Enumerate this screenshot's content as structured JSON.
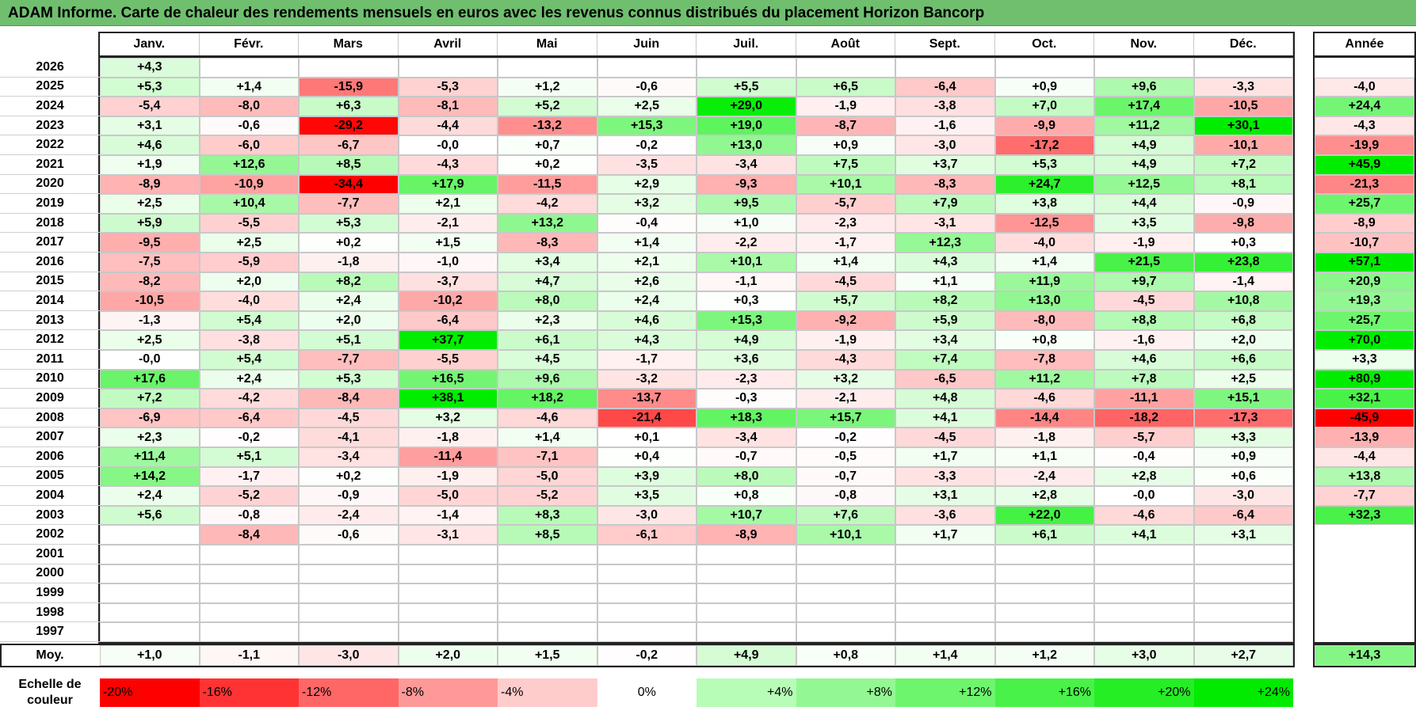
{
  "title": "ADAM Informe. Carte de chaleur des rendements mensuels en euros avec les revenus connus distribués du placement Horizon Bancorp",
  "chart_data": {
    "type": "heatmap",
    "title": "ADAM Informe. Carte de chaleur des rendements mensuels en euros avec les revenus connus distribués du placement Horizon Bancorp",
    "months": [
      "Janv.",
      "Févr.",
      "Mars",
      "Avril",
      "Mai",
      "Juin",
      "Juil.",
      "Août",
      "Sept.",
      "Oct.",
      "Nov.",
      "Déc."
    ],
    "year_header": "Année",
    "rows": [
      {
        "year": "2026",
        "values": [
          "+4,3",
          null,
          null,
          null,
          null,
          null,
          null,
          null,
          null,
          null,
          null,
          null
        ],
        "annual": null
      },
      {
        "year": "2025",
        "values": [
          "+5,3",
          "+1,4",
          "-15,9",
          "-5,3",
          "+1,2",
          "-0,6",
          "+5,5",
          "+6,5",
          "-6,4",
          "+0,9",
          "+9,6",
          "-3,3"
        ],
        "annual": "-4,0"
      },
      {
        "year": "2024",
        "values": [
          "-5,4",
          "-8,0",
          "+6,3",
          "-8,1",
          "+5,2",
          "+2,5",
          "+29,0",
          "-1,9",
          "-3,8",
          "+7,0",
          "+17,4",
          "-10,5"
        ],
        "annual": "+24,4"
      },
      {
        "year": "2023",
        "values": [
          "+3,1",
          "-0,6",
          "-29,2",
          "-4,4",
          "-13,2",
          "+15,3",
          "+19,0",
          "-8,7",
          "-1,6",
          "-9,9",
          "+11,2",
          "+30,1"
        ],
        "annual": "-4,3"
      },
      {
        "year": "2022",
        "values": [
          "+4,6",
          "-6,0",
          "-6,7",
          "-0,0",
          "+0,7",
          "-0,2",
          "+13,0",
          "+0,9",
          "-3,0",
          "-17,2",
          "+4,9",
          "-10,1"
        ],
        "annual": "-19,9"
      },
      {
        "year": "2021",
        "values": [
          "+1,9",
          "+12,6",
          "+8,5",
          "-4,3",
          "+0,2",
          "-3,5",
          "-3,4",
          "+7,5",
          "+3,7",
          "+5,3",
          "+4,9",
          "+7,2"
        ],
        "annual": "+45,9"
      },
      {
        "year": "2020",
        "values": [
          "-8,9",
          "-10,9",
          "-34,4",
          "+17,9",
          "-11,5",
          "+2,9",
          "-9,3",
          "+10,1",
          "-8,3",
          "+24,7",
          "+12,5",
          "+8,1"
        ],
        "annual": "-21,3"
      },
      {
        "year": "2019",
        "values": [
          "+2,5",
          "+10,4",
          "-7,7",
          "+2,1",
          "-4,2",
          "+3,2",
          "+9,5",
          "-5,7",
          "+7,9",
          "+3,8",
          "+4,4",
          "-0,9"
        ],
        "annual": "+25,7"
      },
      {
        "year": "2018",
        "values": [
          "+5,9",
          "-5,5",
          "+5,3",
          "-2,1",
          "+13,2",
          "-0,4",
          "+1,0",
          "-2,3",
          "-3,1",
          "-12,5",
          "+3,5",
          "-9,8"
        ],
        "annual": "-8,9"
      },
      {
        "year": "2017",
        "values": [
          "-9,5",
          "+2,5",
          "+0,2",
          "+1,5",
          "-8,3",
          "+1,4",
          "-2,2",
          "-1,7",
          "+12,3",
          "-4,0",
          "-1,9",
          "+0,3"
        ],
        "annual": "-10,7"
      },
      {
        "year": "2016",
        "values": [
          "-7,5",
          "-5,9",
          "-1,8",
          "-1,0",
          "+3,4",
          "+2,1",
          "+10,1",
          "+1,4",
          "+4,3",
          "+1,4",
          "+21,5",
          "+23,8"
        ],
        "annual": "+57,1"
      },
      {
        "year": "2015",
        "values": [
          "-8,2",
          "+2,0",
          "+8,2",
          "-3,7",
          "+4,7",
          "+2,6",
          "-1,1",
          "-4,5",
          "+1,1",
          "+11,9",
          "+9,7",
          "-1,4"
        ],
        "annual": "+20,9"
      },
      {
        "year": "2014",
        "values": [
          "-10,5",
          "-4,0",
          "+2,4",
          "-10,2",
          "+8,0",
          "+2,4",
          "+0,3",
          "+5,7",
          "+8,2",
          "+13,0",
          "-4,5",
          "+10,8"
        ],
        "annual": "+19,3"
      },
      {
        "year": "2013",
        "values": [
          "-1,3",
          "+5,4",
          "+2,0",
          "-6,4",
          "+2,3",
          "+4,6",
          "+15,3",
          "-9,2",
          "+5,9",
          "-8,0",
          "+8,8",
          "+6,8"
        ],
        "annual": "+25,7"
      },
      {
        "year": "2012",
        "values": [
          "+2,5",
          "-3,8",
          "+5,1",
          "+37,7",
          "+6,1",
          "+4,3",
          "+4,9",
          "-1,9",
          "+3,4",
          "+0,8",
          "-1,6",
          "+2,0"
        ],
        "annual": "+70,0"
      },
      {
        "year": "2011",
        "values": [
          "-0,0",
          "+5,4",
          "-7,7",
          "-5,5",
          "+4,5",
          "-1,7",
          "+3,6",
          "-4,3",
          "+7,4",
          "-7,8",
          "+4,6",
          "+6,6"
        ],
        "annual": "+3,3"
      },
      {
        "year": "2010",
        "values": [
          "+17,6",
          "+2,4",
          "+5,3",
          "+16,5",
          "+9,6",
          "-3,2",
          "-2,3",
          "+3,2",
          "-6,5",
          "+11,2",
          "+7,8",
          "+2,5"
        ],
        "annual": "+80,9"
      },
      {
        "year": "2009",
        "values": [
          "+7,2",
          "-4,2",
          "-8,4",
          "+38,1",
          "+18,2",
          "-13,7",
          "-0,3",
          "-2,1",
          "+4,8",
          "-4,6",
          "-11,1",
          "+15,1"
        ],
        "annual": "+32,1"
      },
      {
        "year": "2008",
        "values": [
          "-6,9",
          "-6,4",
          "-4,5",
          "+3,2",
          "-4,6",
          "-21,4",
          "+18,3",
          "+15,7",
          "+4,1",
          "-14,4",
          "-18,2",
          "-17,3"
        ],
        "annual": "-45,9"
      },
      {
        "year": "2007",
        "values": [
          "+2,3",
          "-0,2",
          "-4,1",
          "-1,8",
          "+1,4",
          "+0,1",
          "-3,4",
          "-0,2",
          "-4,5",
          "-1,8",
          "-5,7",
          "+3,3"
        ],
        "annual": "-13,9"
      },
      {
        "year": "2006",
        "values": [
          "+11,4",
          "+5,1",
          "-3,4",
          "-11,4",
          "-7,1",
          "+0,4",
          "-0,7",
          "-0,5",
          "+1,7",
          "+1,1",
          "-0,4",
          "+0,9"
        ],
        "annual": "-4,4"
      },
      {
        "year": "2005",
        "values": [
          "+14,2",
          "-1,7",
          "+0,2",
          "-1,9",
          "-5,0",
          "+3,9",
          "+8,0",
          "-0,7",
          "-3,3",
          "-2,4",
          "+2,8",
          "+0,6"
        ],
        "annual": "+13,8"
      },
      {
        "year": "2004",
        "values": [
          "+2,4",
          "-5,2",
          "-0,9",
          "-5,0",
          "-5,2",
          "+3,5",
          "+0,8",
          "-0,8",
          "+3,1",
          "+2,8",
          "-0,0",
          "-3,0"
        ],
        "annual": "-7,7"
      },
      {
        "year": "2003",
        "values": [
          "+5,6",
          "-0,8",
          "-2,4",
          "-1,4",
          "+8,3",
          "-3,0",
          "+10,7",
          "+7,6",
          "-3,6",
          "+22,0",
          "-4,6",
          "-6,4"
        ],
        "annual": "+32,3"
      },
      {
        "year": "2002",
        "values": [
          null,
          "-8,4",
          "-0,6",
          "-3,1",
          "+8,5",
          "-6,1",
          "-8,9",
          "+10,1",
          "+1,7",
          "+6,1",
          "+4,1",
          "+3,1"
        ],
        "annual": null
      },
      {
        "year": "2001",
        "values": [
          null,
          null,
          null,
          null,
          null,
          null,
          null,
          null,
          null,
          null,
          null,
          null
        ],
        "annual": null
      },
      {
        "year": "2000",
        "values": [
          null,
          null,
          null,
          null,
          null,
          null,
          null,
          null,
          null,
          null,
          null,
          null
        ],
        "annual": null
      },
      {
        "year": "1999",
        "values": [
          null,
          null,
          null,
          null,
          null,
          null,
          null,
          null,
          null,
          null,
          null,
          null
        ],
        "annual": null
      },
      {
        "year": "1998",
        "values": [
          null,
          null,
          null,
          null,
          null,
          null,
          null,
          null,
          null,
          null,
          null,
          null
        ],
        "annual": null
      },
      {
        "year": "1997",
        "values": [
          null,
          null,
          null,
          null,
          null,
          null,
          null,
          null,
          null,
          null,
          null,
          null
        ],
        "annual": null
      }
    ],
    "average": {
      "label": "Moy.",
      "values": [
        "+1,0",
        "-1,1",
        "-3,0",
        "+2,0",
        "+1,5",
        "-0,2",
        "+4,9",
        "+0,8",
        "+1,4",
        "+1,2",
        "+3,0",
        "+2,7"
      ],
      "annual": "+14,3"
    },
    "scale": {
      "label": "Echelle de couleur",
      "stops": [
        {
          "label": "-20%",
          "value": -20
        },
        {
          "label": "-16%",
          "value": -16
        },
        {
          "label": "-12%",
          "value": -12
        },
        {
          "label": "-8%",
          "value": -8
        },
        {
          "label": "-4%",
          "value": -4
        },
        {
          "label": "0%",
          "value": 0
        },
        {
          "label": "+4%",
          "value": 4
        },
        {
          "label": "+8%",
          "value": 8
        },
        {
          "label": "+12%",
          "value": 12
        },
        {
          "label": "+16%",
          "value": 16
        },
        {
          "label": "+20%",
          "value": 20
        },
        {
          "label": "+24%",
          "value": 24
        }
      ]
    },
    "colors": {
      "negative_max": "#ff0000",
      "neutral": "#ffffff",
      "positive_max": "#00e600",
      "title_bg": "#6fbf6f"
    }
  }
}
